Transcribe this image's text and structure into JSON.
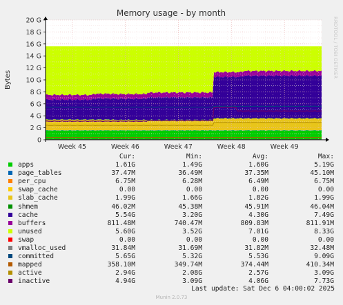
{
  "chart_data": {
    "type": "area",
    "title": "Memory usage - by month",
    "ylabel": "Bytes",
    "y_ticks": [
      "0",
      "2 G",
      "4 G",
      "6 G",
      "8 G",
      "10 G",
      "12 G",
      "14 G",
      "16 G",
      "18 G",
      "20 G"
    ],
    "ylim": [
      0,
      20
    ],
    "x_ticks": [
      "Week 45",
      "Week 46",
      "Week 47",
      "Week 48",
      "Week 49"
    ],
    "x_tick_positions": [
      0.5,
      1.5,
      2.5,
      3.5,
      4.5
    ],
    "xlim": [
      0,
      5.2
    ],
    "grid": true,
    "watermark": "RRDTOOL / TOBI OETIKER",
    "columns": {
      "cur": "Cur:",
      "min": "Min:",
      "avg": "Avg:",
      "max": "Max:"
    },
    "series": [
      {
        "name": "apps",
        "color": "#00cc00",
        "cur": "1.61G",
        "min": "1.49G",
        "avg": "1.60G",
        "max": "5.19G"
      },
      {
        "name": "page_tables",
        "color": "#0066b3",
        "cur": "37.47M",
        "min": "36.49M",
        "avg": "37.35M",
        "max": "45.10M"
      },
      {
        "name": "per_cpu",
        "color": "#ff8000",
        "cur": "6.75M",
        "min": "6.28M",
        "avg": "6.49M",
        "max": "6.75M"
      },
      {
        "name": "swap_cache",
        "color": "#ffcc00",
        "cur": "0.00",
        "min": "0.00",
        "avg": "0.00",
        "max": "0.00"
      },
      {
        "name": "slab_cache",
        "color": "#e8c51a",
        "cur": "1.99G",
        "min": "1.66G",
        "avg": "1.82G",
        "max": "1.99G"
      },
      {
        "name": "shmem",
        "color": "#008f00",
        "cur": "46.02M",
        "min": "45.38M",
        "avg": "45.91M",
        "max": "46.04M"
      },
      {
        "name": "cache",
        "color": "#330099",
        "cur": "5.54G",
        "min": "3.20G",
        "avg": "4.30G",
        "max": "7.49G"
      },
      {
        "name": "buffers",
        "color": "#990099",
        "cur": "811.48M",
        "min": "740.47M",
        "avg": "809.83M",
        "max": "811.91M"
      },
      {
        "name": "unused",
        "color": "#ccff00",
        "cur": "5.60G",
        "min": "3.52G",
        "avg": "7.01G",
        "max": "8.33G"
      },
      {
        "name": "swap",
        "color": "#ff0000",
        "cur": "0.00",
        "min": "0.00",
        "avg": "0.00",
        "max": "0.00"
      },
      {
        "name": "vmalloc_used",
        "color": "#808080",
        "cur": "31.84M",
        "min": "31.69M",
        "avg": "31.82M",
        "max": "32.48M"
      },
      {
        "name": "committed",
        "color": "#00487d",
        "cur": "5.65G",
        "min": "5.32G",
        "avg": "5.53G",
        "max": "9.09G"
      },
      {
        "name": "mapped",
        "color": "#b35a00",
        "cur": "358.10M",
        "min": "349.74M",
        "avg": "374.44M",
        "max": "410.34M"
      },
      {
        "name": "active",
        "color": "#b38f00",
        "cur": "2.94G",
        "min": "2.08G",
        "avg": "2.57G",
        "max": "3.09G"
      },
      {
        "name": "inactive",
        "color": "#6b006b",
        "cur": "4.94G",
        "min": "3.09G",
        "avg": "4.06G",
        "max": "7.73G"
      }
    ]
  },
  "footer": {
    "last_update": "Last update: Sat Dec  6 04:00:02 2025",
    "generator": "Munin 2.0.73"
  }
}
